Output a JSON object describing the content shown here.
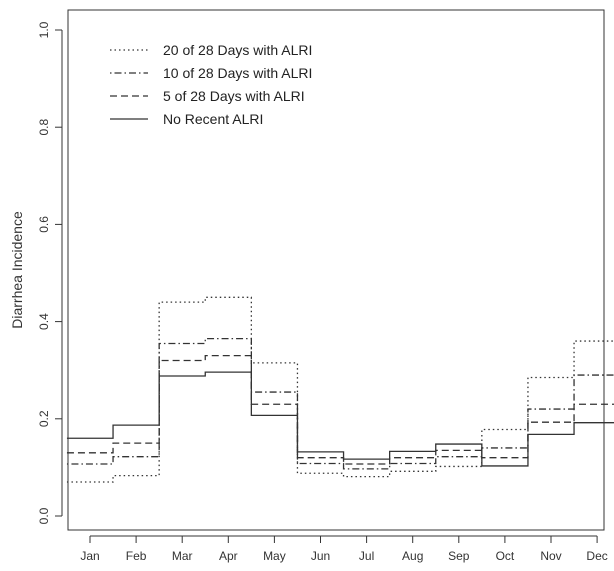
{
  "chart_data": {
    "type": "line",
    "step": true,
    "title": "",
    "xlabel": "",
    "ylabel": "Diarrhea Incidence",
    "categories": [
      "Jan",
      "Feb",
      "Mar",
      "Apr",
      "May",
      "Jun",
      "Jul",
      "Aug",
      "Sep",
      "Oct",
      "Nov",
      "Dec"
    ],
    "ylim": [
      0.0,
      1.0
    ],
    "yticks": [
      "0.0",
      "0.2",
      "0.4",
      "0.6",
      "0.8",
      "1.0"
    ],
    "yticks_values": [
      0.0,
      0.2,
      0.4,
      0.6,
      0.8,
      1.0
    ],
    "grid": false,
    "legend_position": "top-left",
    "series": [
      {
        "name": "20 of 28 Days with ALRI",
        "line_style": "dotted",
        "values": [
          0.07,
          0.083,
          0.44,
          0.45,
          0.315,
          0.088,
          0.081,
          0.092,
          0.102,
          0.178,
          0.285,
          0.36
        ]
      },
      {
        "name": "10 of 28 Days with ALRI",
        "line_style": "dotdash",
        "values": [
          0.107,
          0.122,
          0.355,
          0.365,
          0.255,
          0.108,
          0.097,
          0.108,
          0.122,
          0.14,
          0.22,
          0.29
        ]
      },
      {
        "name": "5 of 28 Days with ALRI",
        "line_style": "dashed",
        "values": [
          0.13,
          0.15,
          0.32,
          0.33,
          0.23,
          0.12,
          0.107,
          0.12,
          0.135,
          0.12,
          0.193,
          0.23
        ]
      },
      {
        "name": "No Recent ALRI",
        "line_style": "solid",
        "values": [
          0.16,
          0.187,
          0.288,
          0.296,
          0.207,
          0.132,
          0.117,
          0.133,
          0.148,
          0.103,
          0.168,
          0.192
        ]
      }
    ]
  },
  "colors": {
    "line": "#333333",
    "axis": "#333333",
    "frame": "#333333"
  }
}
